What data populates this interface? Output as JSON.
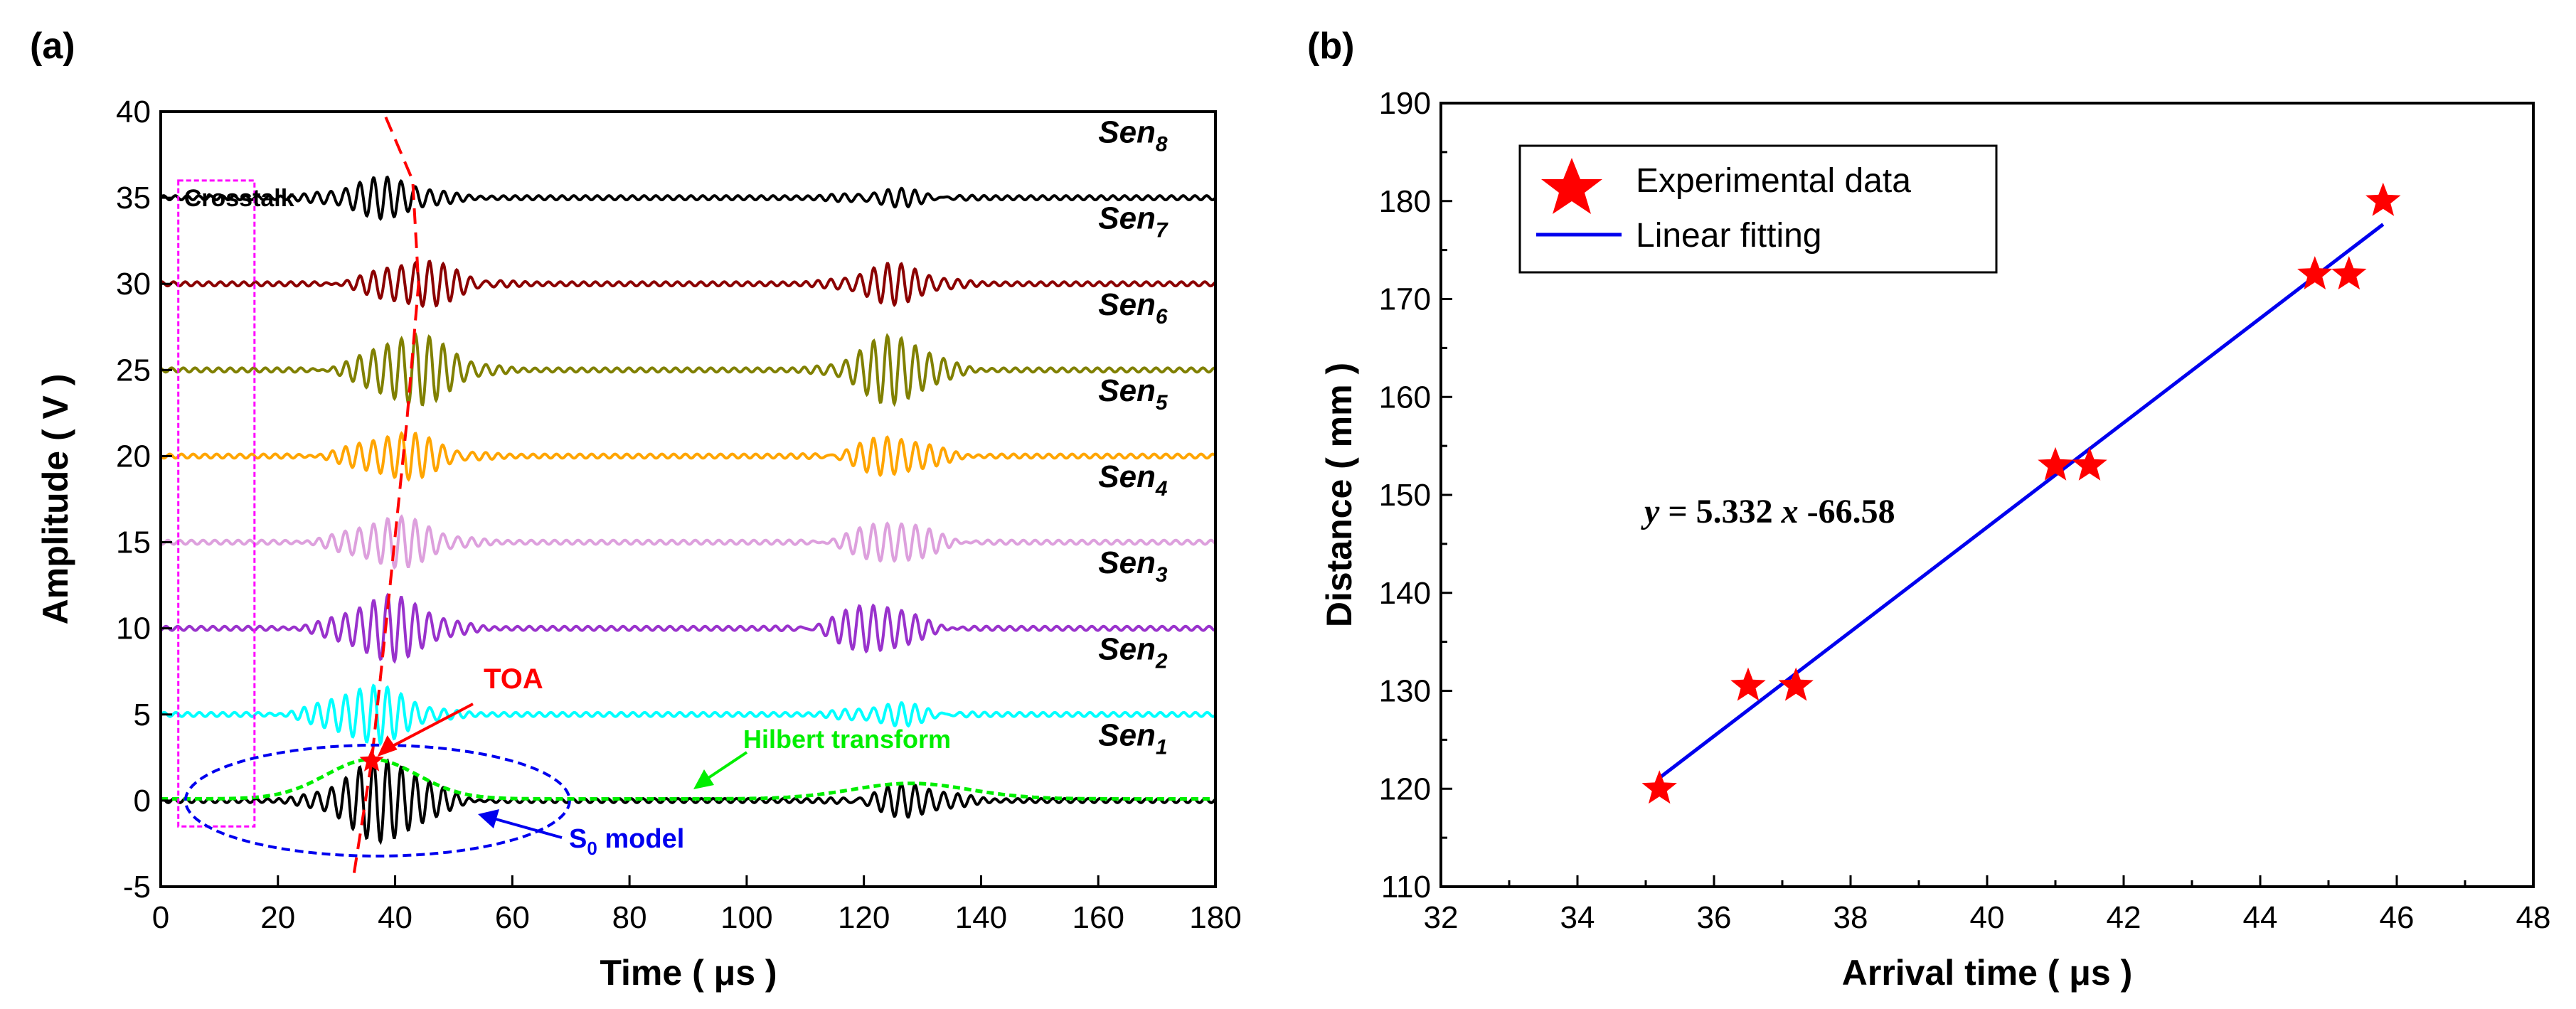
{
  "chart_data": [
    {
      "panel": "(a)",
      "type": "line",
      "xlabel": "Time ( μs )",
      "ylabel": "Amplitude ( V )",
      "xlim": [
        0,
        180
      ],
      "ylim": [
        -5,
        40
      ],
      "xticks": [
        0,
        20,
        40,
        60,
        80,
        100,
        120,
        140,
        160,
        180
      ],
      "yticks": [
        -5,
        0,
        5,
        10,
        15,
        20,
        25,
        30,
        35,
        40
      ],
      "series": [
        {
          "name": "Sen",
          "sub": "8",
          "offset": 35,
          "color": "#000000",
          "amp1": 1.1,
          "burst1_center": 38,
          "amp2": 0.45,
          "burst2_center": 125
        },
        {
          "name": "Sen",
          "sub": "7",
          "offset": 30,
          "color": "#8B0000",
          "amp1": 1.3,
          "burst1_center": 44,
          "amp2": 1.1,
          "burst2_center": 125
        },
        {
          "name": "Sen",
          "sub": "6",
          "offset": 25,
          "color": "#808000",
          "amp1": 2.0,
          "burst1_center": 43,
          "amp2": 1.9,
          "burst2_center": 125
        },
        {
          "name": "Sen",
          "sub": "5",
          "offset": 20,
          "color": "#FFA500",
          "amp1": 1.3,
          "burst1_center": 41,
          "amp2": 1.1,
          "burst2_center": 125
        },
        {
          "name": "Sen",
          "sub": "4",
          "offset": 15,
          "color": "#DDA0DD",
          "amp1": 1.4,
          "burst1_center": 40,
          "amp2": 1.2,
          "burst2_center": 125
        },
        {
          "name": "Sen",
          "sub": "3",
          "offset": 10,
          "color": "#9932CC",
          "amp1": 1.8,
          "burst1_center": 39,
          "amp2": 1.4,
          "burst2_center": 122
        },
        {
          "name": "Sen",
          "sub": "2",
          "offset": 5,
          "color": "#00FFFF",
          "amp1": 1.6,
          "burst1_center": 36,
          "amp2": 0.6,
          "burst2_center": 125
        },
        {
          "name": "Sen",
          "sub": "1",
          "offset": 0,
          "color": "#000000",
          "amp1": 2.3,
          "burst1_center": 38,
          "amp2": 0.9,
          "burst2_center": 128
        }
      ],
      "hilbert": {
        "label": "Hilbert transform",
        "color": "#00EE00",
        "peak1_x": 36,
        "peak1_y": 2.3,
        "peak2_x": 128,
        "peak2_y": 0.9
      },
      "toa": {
        "label": "TOA",
        "x": 36,
        "y": 2.3,
        "color": "#FF0000"
      },
      "toa_curve": {
        "color": "#FF0000",
        "points": [
          [
            33,
            -4.2
          ],
          [
            36,
            2.3
          ],
          [
            39,
            12
          ],
          [
            42,
            22
          ],
          [
            44,
            30
          ],
          [
            43,
            36
          ],
          [
            38,
            40
          ]
        ]
      },
      "crosstalk": {
        "label": "Crosstalk",
        "x_range": [
          3,
          16
        ],
        "y_range": [
          -1.5,
          36
        ],
        "color": "#FF00FF"
      },
      "s0": {
        "label": "S",
        "sub": "0",
        "suffix": " model",
        "center_x": 37,
        "center_y": 0,
        "color": "#0000EE"
      }
    },
    {
      "panel": "(b)",
      "type": "scatter",
      "xlabel": "Arrival time ( μs )",
      "ylabel": "Distance ( mm )",
      "xlim": [
        32,
        48
      ],
      "ylim": [
        110,
        190
      ],
      "xticks": [
        32,
        34,
        36,
        38,
        40,
        42,
        44,
        46,
        48
      ],
      "yticks": [
        110,
        120,
        130,
        140,
        150,
        160,
        170,
        180,
        190
      ],
      "points": [
        {
          "x": 35.2,
          "y": 120
        },
        {
          "x": 36.5,
          "y": 130.5
        },
        {
          "x": 37.2,
          "y": 130.5
        },
        {
          "x": 41.0,
          "y": 153
        },
        {
          "x": 41.5,
          "y": 153
        },
        {
          "x": 44.8,
          "y": 172.5
        },
        {
          "x": 45.3,
          "y": 172.5
        },
        {
          "x": 45.8,
          "y": 180
        }
      ],
      "fit": {
        "slope": 5.332,
        "intercept": -66.58,
        "x_range": [
          35.2,
          45.8
        ]
      },
      "equation": {
        "y": "y",
        "eq": " = 5.332 ",
        "x": "x",
        "rest": " -66.58"
      },
      "legend": {
        "scatter": "Experimental data",
        "line": "Linear fitting",
        "position": "top-left"
      },
      "scatter_color": "#FF0000",
      "line_color": "#0000EE"
    }
  ]
}
